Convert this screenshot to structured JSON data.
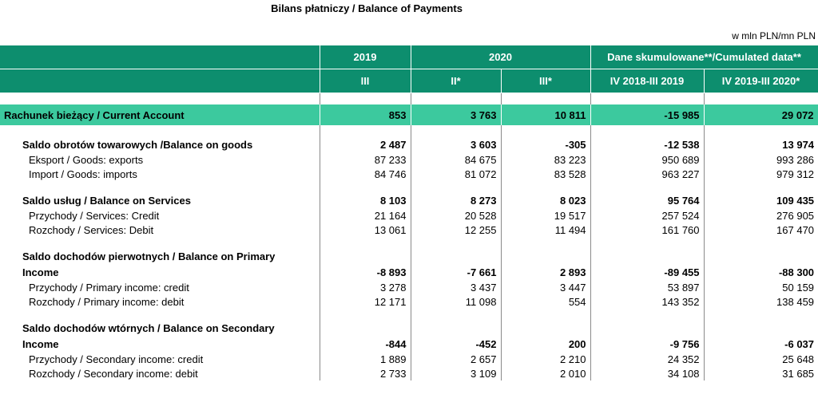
{
  "title": "Bilans płatniczy / Balance of Payments",
  "unit": "w mln PLN/mn PLN",
  "header": {
    "year_2019": "2019",
    "year_2020": "2020",
    "cumulated": "Dane skumulowane**/Cumulated data**",
    "col_2019_III": "III",
    "col_2020_II": "II*",
    "col_2020_III": "III*",
    "col_cum_1": "IV 2018-III 2019",
    "col_cum_2": "IV 2019-III 2020*"
  },
  "rows": {
    "current_account": {
      "label": "Rachunek bieżący / Current Account",
      "values": [
        "853",
        "3 763",
        "10 811",
        "-15 985",
        "29 072"
      ]
    },
    "goods": {
      "label": "Saldo obrotów towarowych /Balance on goods",
      "values": [
        "2 487",
        "3 603",
        "-305",
        "-12 538",
        "13 974"
      ]
    },
    "goods_exports": {
      "label": "Eksport / Goods: exports",
      "values": [
        "87 233",
        "84 675",
        "83 223",
        "950 689",
        "993 286"
      ]
    },
    "goods_imports": {
      "label": "Import / Goods: imports",
      "values": [
        "84 746",
        "81 072",
        "83 528",
        "963 227",
        "979 312"
      ]
    },
    "services": {
      "label": "Saldo usług / Balance on Services",
      "values": [
        "8 103",
        "8 273",
        "8 023",
        "95 764",
        "109 435"
      ]
    },
    "services_credit": {
      "label": "Przychody / Services: Credit",
      "values": [
        "21 164",
        "20 528",
        "19 517",
        "257 524",
        "276 905"
      ]
    },
    "services_debit": {
      "label": "Rozchody / Services: Debit",
      "values": [
        "13 061",
        "12 255",
        "11 494",
        "161 760",
        "167 470"
      ]
    },
    "primary": {
      "label_line1": "Saldo dochodów pierwotnych / Balance on Primary",
      "label_line2": "Income",
      "values": [
        "-8 893",
        "-7 661",
        "2 893",
        "-89 455",
        "-88 300"
      ]
    },
    "primary_credit": {
      "label": "Przychody / Primary income: credit",
      "values": [
        "3 278",
        "3 437",
        "3 447",
        "53 897",
        "50 159"
      ]
    },
    "primary_debit": {
      "label": "Rozchody / Primary income: debit",
      "values": [
        "12 171",
        "11 098",
        "554",
        "143 352",
        "138 459"
      ]
    },
    "secondary": {
      "label_line1": "Saldo dochodów wtórnych / Balance on Secondary",
      "label_line2": "Income",
      "values": [
        "-844",
        "-452",
        "200",
        "-9 756",
        "-6 037"
      ]
    },
    "secondary_credit": {
      "label": "Przychody / Secondary income: credit",
      "values": [
        "1 889",
        "2 657",
        "2 210",
        "24 352",
        "25 648"
      ]
    },
    "secondary_debit": {
      "label": "Rozchody / Secondary income: debit",
      "values": [
        "2 733",
        "3 109",
        "2 010",
        "34 108",
        "31 685"
      ]
    }
  },
  "colors": {
    "header_bg": "#0d8e6e",
    "highlight_bg": "#3cc99e"
  }
}
